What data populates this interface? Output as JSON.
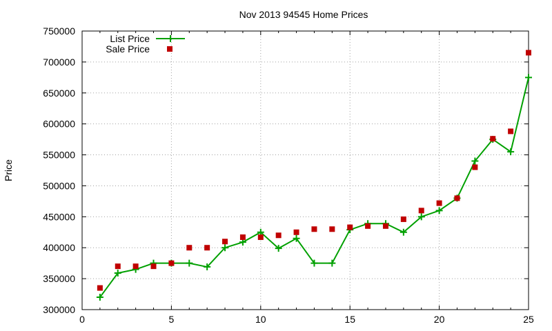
{
  "chart_data": {
    "type": "line",
    "title": "Nov 2013 94545 Home Prices",
    "xlabel": "",
    "ylabel": "Price",
    "xlim": [
      0,
      25
    ],
    "ylim": [
      300000,
      750000
    ],
    "xticks": [
      "0",
      "5",
      "10",
      "15",
      "20",
      "25"
    ],
    "yticks": [
      "300000",
      "350000",
      "400000",
      "450000",
      "500000",
      "550000",
      "600000",
      "650000",
      "700000",
      "750000"
    ],
    "grid": true,
    "legend_position": "top-left",
    "x": [
      1,
      2,
      3,
      4,
      5,
      6,
      7,
      8,
      9,
      10,
      11,
      12,
      13,
      14,
      15,
      16,
      17,
      18,
      19,
      20,
      21,
      22,
      23,
      24,
      25
    ],
    "series": [
      {
        "name": "List Price",
        "style": "line+plus",
        "color": "#00a000",
        "values": [
          320000,
          359000,
          365000,
          375000,
          375000,
          375000,
          369000,
          400000,
          409000,
          425000,
          399000,
          415000,
          375000,
          375000,
          429000,
          439000,
          439000,
          425000,
          450000,
          460000,
          480000,
          540000,
          575000,
          555000,
          675000
        ]
      },
      {
        "name": "Sale Price",
        "style": "square",
        "color": "#c00000",
        "values": [
          335000,
          370000,
          370000,
          370000,
          375000,
          400000,
          400000,
          410000,
          417000,
          417000,
          420000,
          425000,
          430000,
          430000,
          433000,
          435000,
          435000,
          446000,
          460000,
          472000,
          480000,
          530000,
          576000,
          588000,
          715000
        ]
      }
    ]
  }
}
